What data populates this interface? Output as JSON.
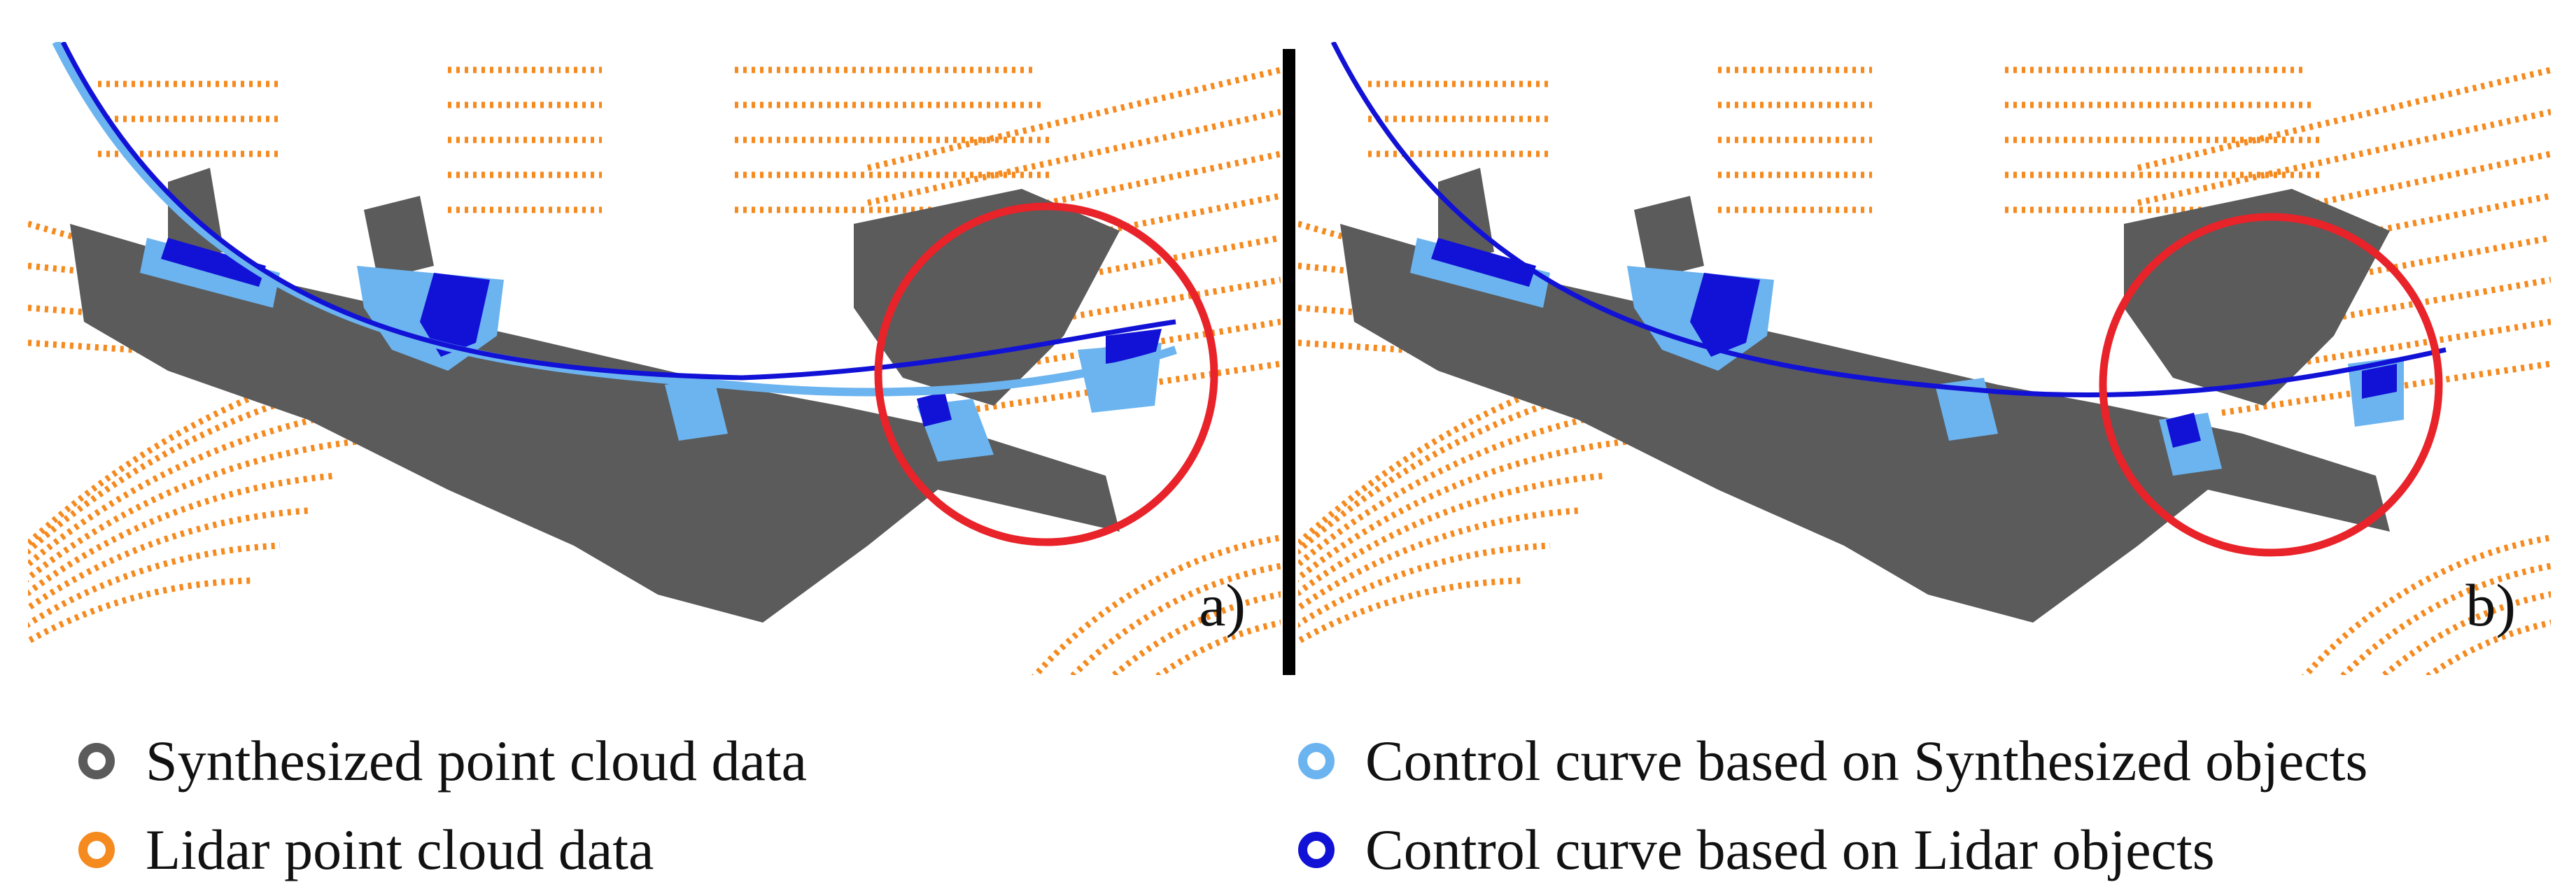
{
  "colors": {
    "synthesized": "#5b5b5b",
    "lidar": "#f58a1f",
    "control_synth": "#6cb4f0",
    "control_lidar": "#1212d6",
    "highlight_circle": "#e8232a"
  },
  "panels": [
    {
      "label": "a)",
      "curves": [
        "control_synth",
        "control_lidar"
      ]
    },
    {
      "label": "b)",
      "curves": [
        "control_lidar"
      ]
    }
  ],
  "legend": [
    {
      "text": "Synthesized point cloud data",
      "color_key": "synthesized"
    },
    {
      "text": "Lidar point cloud data",
      "color_key": "lidar"
    },
    {
      "text": "Control curve based on Synthesized objects",
      "color_key": "control_synth"
    },
    {
      "text": "Control curve based on Lidar objects",
      "color_key": "control_lidar"
    }
  ]
}
